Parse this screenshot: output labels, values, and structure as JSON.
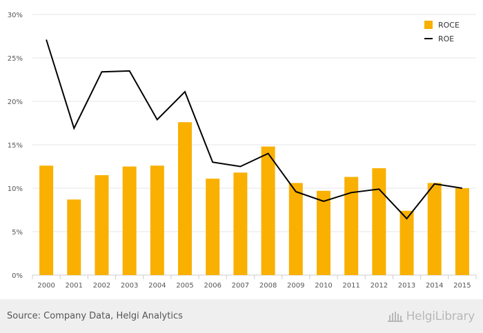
{
  "chart_data": {
    "type": "bar",
    "categories": [
      "2000",
      "2001",
      "2002",
      "2003",
      "2004",
      "2005",
      "2006",
      "2007",
      "2008",
      "2009",
      "2010",
      "2011",
      "2012",
      "2013",
      "2014",
      "2015"
    ],
    "series": [
      {
        "name": "ROCE",
        "type": "bar",
        "color": "#f9b000",
        "values": [
          12.6,
          8.7,
          11.5,
          12.5,
          12.6,
          17.6,
          11.1,
          11.8,
          14.8,
          10.6,
          9.7,
          11.3,
          12.3,
          7.4,
          10.6,
          10.0
        ]
      },
      {
        "name": "ROE",
        "type": "line",
        "color": "#000000",
        "values": [
          27.1,
          16.9,
          23.4,
          23.5,
          17.9,
          21.1,
          13.0,
          12.5,
          14.0,
          9.6,
          8.5,
          9.5,
          9.9,
          6.5,
          10.5,
          10.0
        ]
      }
    ],
    "ylim": [
      0,
      30
    ],
    "yticks": [
      0,
      5,
      10,
      15,
      20,
      25,
      30
    ],
    "ytick_labels": [
      "0%",
      "5%",
      "10%",
      "15%",
      "20%",
      "25%",
      "30%"
    ],
    "grid": true,
    "legend_position": "top-right"
  },
  "footer": {
    "source": "Source: Company Data, Helgi Analytics",
    "brand": "HelgiLibrary"
  }
}
